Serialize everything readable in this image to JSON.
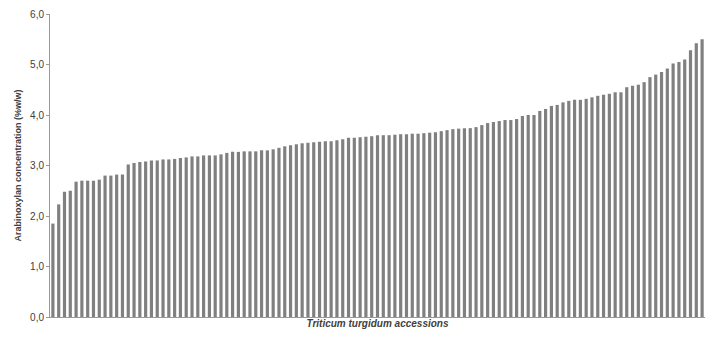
{
  "chart_data": {
    "type": "bar",
    "x_label": "Triticum turgidum accessions",
    "y_label": "Arabinoxylan concentration (%w/w)",
    "categories": [
      null,
      null,
      null,
      null,
      null,
      null,
      null,
      null,
      null,
      null,
      null,
      null,
      null,
      null,
      null,
      null,
      null,
      null,
      null,
      null,
      null,
      null,
      null,
      null,
      null,
      null,
      null,
      null,
      null,
      null,
      null,
      null,
      null,
      null,
      null,
      null,
      null,
      null,
      null,
      null,
      null,
      null,
      null,
      null,
      null,
      null,
      null,
      null,
      null,
      null,
      null,
      null,
      null,
      null,
      null,
      null,
      null,
      null,
      null,
      null,
      null,
      null,
      null,
      null,
      null,
      null,
      null,
      null,
      null,
      null,
      null,
      null,
      null,
      null,
      null,
      null,
      null,
      null,
      null,
      null,
      null,
      null,
      null,
      null,
      null,
      null,
      null,
      null,
      null,
      null,
      null,
      null,
      null,
      null,
      null,
      null,
      null,
      null,
      null,
      null,
      null,
      null,
      null,
      null,
      null,
      null,
      null,
      null,
      null,
      null,
      null,
      null,
      null
    ],
    "values": [
      1.85,
      2.23,
      2.48,
      2.5,
      2.68,
      2.7,
      2.7,
      2.7,
      2.72,
      2.8,
      2.8,
      2.82,
      2.82,
      3.02,
      3.05,
      3.07,
      3.08,
      3.1,
      3.1,
      3.12,
      3.12,
      3.13,
      3.15,
      3.16,
      3.18,
      3.18,
      3.2,
      3.2,
      3.2,
      3.22,
      3.25,
      3.27,
      3.27,
      3.28,
      3.28,
      3.28,
      3.3,
      3.3,
      3.32,
      3.35,
      3.38,
      3.4,
      3.42,
      3.44,
      3.45,
      3.46,
      3.47,
      3.48,
      3.48,
      3.5,
      3.52,
      3.55,
      3.55,
      3.56,
      3.57,
      3.58,
      3.6,
      3.6,
      3.6,
      3.61,
      3.62,
      3.62,
      3.63,
      3.63,
      3.64,
      3.65,
      3.66,
      3.68,
      3.7,
      3.72,
      3.73,
      3.74,
      3.74,
      3.76,
      3.8,
      3.84,
      3.86,
      3.88,
      3.9,
      3.9,
      3.92,
      3.98,
      4.0,
      4.0,
      4.08,
      4.12,
      4.18,
      4.2,
      4.25,
      4.28,
      4.3,
      4.3,
      4.32,
      4.35,
      4.38,
      4.4,
      4.42,
      4.45,
      4.45,
      4.55,
      4.58,
      4.6,
      4.65,
      4.75,
      4.8,
      4.85,
      4.92,
      5.02,
      5.05,
      5.1,
      5.28,
      5.42,
      5.5
    ],
    "color": "#808080",
    "ylim": [
      0,
      6
    ],
    "yticks": [
      {
        "value": 0,
        "label": "0,0"
      },
      {
        "value": 1,
        "label": "1,0"
      },
      {
        "value": 2,
        "label": "2,0"
      },
      {
        "value": 3,
        "label": "3,0"
      },
      {
        "value": 4,
        "label": "4,0"
      },
      {
        "value": 5,
        "label": "5,0"
      },
      {
        "value": 6,
        "label": "6,0"
      }
    ],
    "grid": false,
    "tick_labels": "y"
  }
}
